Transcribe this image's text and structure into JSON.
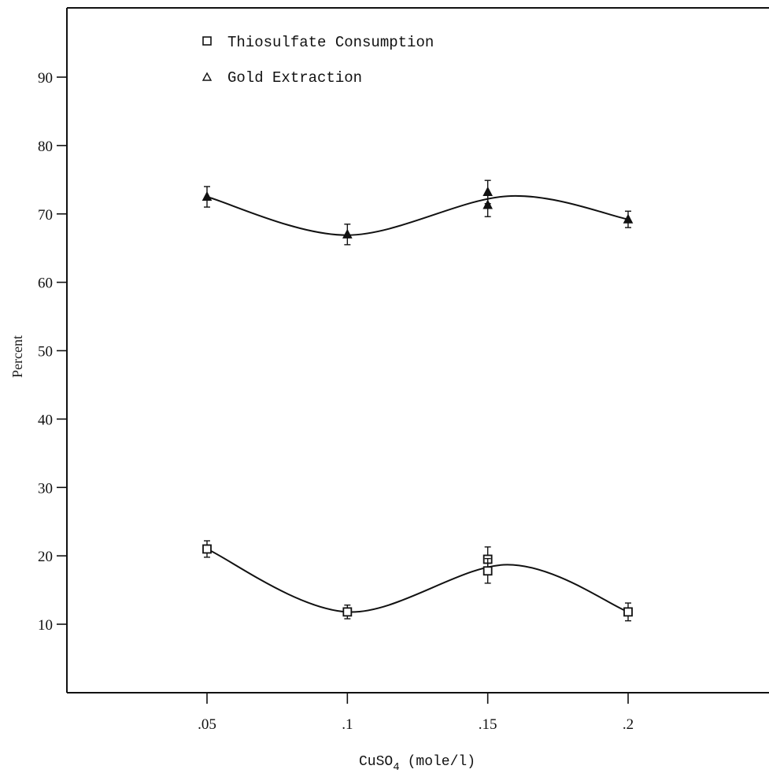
{
  "chart_data": {
    "type": "line",
    "title": "",
    "xlabel": "CuSO",
    "xlabel_subscript": "4",
    "xlabel_unit": "(mole/l)",
    "ylabel": "Percent",
    "x_ticks": [
      ".05",
      ".1",
      ".15",
      ".2"
    ],
    "x_tick_values": [
      0.05,
      0.1,
      0.15,
      0.2
    ],
    "y_ticks": [
      "10",
      "20",
      "30",
      "40",
      "50",
      "60",
      "70",
      "80",
      "90"
    ],
    "y_tick_values": [
      10,
      20,
      30,
      40,
      50,
      60,
      70,
      80,
      90
    ],
    "xlim": [
      0,
      0.25
    ],
    "ylim": [
      0,
      100
    ],
    "grid": false,
    "legend_position": "top-center",
    "series": [
      {
        "name": "Thiosulfate Consumption",
        "marker": "square",
        "points": [
          {
            "x": 0.05,
            "y": 21.0,
            "err": 1.2
          },
          {
            "x": 0.1,
            "y": 11.8,
            "err": 1.0
          },
          {
            "x": 0.15,
            "y": 19.5,
            "err": 1.8
          },
          {
            "x": 0.15,
            "y": 17.8,
            "err": 1.8
          },
          {
            "x": 0.2,
            "y": 11.8,
            "err": 1.3
          }
        ],
        "curve": [
          {
            "x": 0.05,
            "y": 21.0
          },
          {
            "x": 0.1,
            "y": 11.8
          },
          {
            "x": 0.157,
            "y": 18.7
          },
          {
            "x": 0.2,
            "y": 11.8
          }
        ]
      },
      {
        "name": "Gold Extraction",
        "marker": "triangle",
        "points": [
          {
            "x": 0.05,
            "y": 72.5,
            "err": 1.5
          },
          {
            "x": 0.1,
            "y": 67.0,
            "err": 1.5
          },
          {
            "x": 0.15,
            "y": 73.2,
            "err": 1.7
          },
          {
            "x": 0.15,
            "y": 71.3,
            "err": 1.7
          },
          {
            "x": 0.2,
            "y": 69.2,
            "err": 1.2
          }
        ],
        "curve": [
          {
            "x": 0.05,
            "y": 72.5
          },
          {
            "x": 0.1,
            "y": 66.9
          },
          {
            "x": 0.157,
            "y": 72.6
          },
          {
            "x": 0.2,
            "y": 69.2
          }
        ]
      }
    ],
    "colors": {
      "ink": "#111111",
      "background": "#ffffff"
    }
  }
}
